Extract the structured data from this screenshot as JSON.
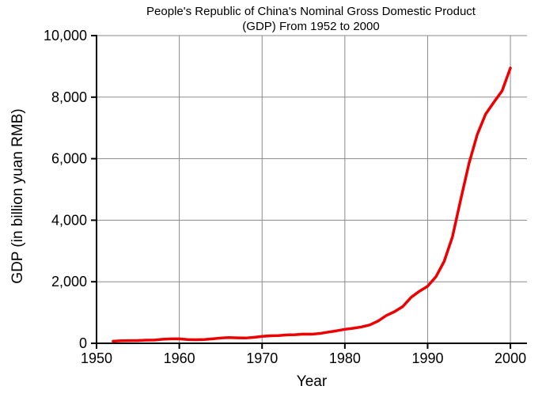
{
  "chart_data": {
    "type": "line",
    "title_line1": "People's Republic of China's Nominal Gross Domestic Product",
    "title_line2": "(GDP) From 1952 to 2000",
    "xlabel": "Year",
    "ylabel": "GDP (in billion yuan RMB)",
    "xlim": [
      1950,
      2002
    ],
    "ylim": [
      0,
      10000
    ],
    "x_ticks": [
      1950,
      1960,
      1970,
      1980,
      1990,
      2000
    ],
    "x_tick_labels": [
      "1950",
      "1960",
      "1970",
      "1980",
      "1990",
      "2000"
    ],
    "y_ticks": [
      0,
      2000,
      4000,
      6000,
      8000,
      10000
    ],
    "y_tick_labels": [
      "0",
      "2,000",
      "4,000",
      "6,000",
      "8,000",
      "10,000"
    ],
    "grid": true,
    "series": [
      {
        "color": "#ee0000",
        "x": [
          1952,
          1953,
          1954,
          1955,
          1956,
          1957,
          1958,
          1959,
          1960,
          1961,
          1962,
          1963,
          1964,
          1965,
          1966,
          1967,
          1968,
          1969,
          1970,
          1971,
          1972,
          1973,
          1974,
          1975,
          1976,
          1977,
          1978,
          1979,
          1980,
          1981,
          1982,
          1983,
          1984,
          1985,
          1986,
          1987,
          1988,
          1989,
          1990,
          1991,
          1992,
          1993,
          1994,
          1995,
          1996,
          1997,
          1998,
          1999,
          2000
        ],
        "y": [
          68,
          82,
          86,
          91,
          103,
          107,
          131,
          144,
          146,
          122,
          115,
          123,
          145,
          172,
          187,
          177,
          172,
          194,
          225,
          243,
          252,
          272,
          279,
          300,
          294,
          320,
          365,
          406,
          455,
          489,
          532,
          596,
          721,
          902,
          1028,
          1196,
          1493,
          1691,
          1855,
          2162,
          2664,
          3463,
          4676,
          5848,
          6788,
          7446,
          7835,
          8207,
          8947
        ]
      }
    ]
  }
}
